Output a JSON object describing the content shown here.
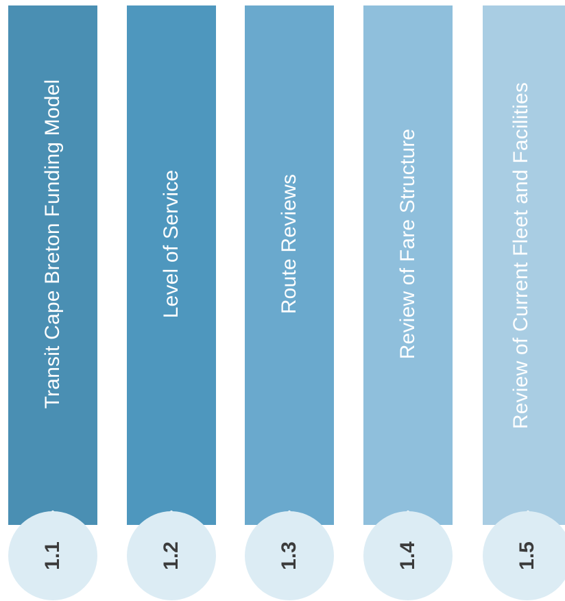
{
  "colors": {
    "background": "#ffffff",
    "badge_fill": "#dcecf4",
    "badge_text": "#3c3c3c",
    "banner_text": "#ffffff"
  },
  "columns": [
    {
      "number": "1.1",
      "title": "Transit Cape Breton Funding Model",
      "color": "#4a8fb3"
    },
    {
      "number": "1.2",
      "title": "Level of Service",
      "color": "#4e97be"
    },
    {
      "number": "1.3",
      "title": "Route Reviews",
      "color": "#6aa9cd"
    },
    {
      "number": "1.4",
      "title": "Review of Fare Structure",
      "color": "#8fbfdc"
    },
    {
      "number": "1.5",
      "title": "Review of Current Fleet and Facilities",
      "color": "#a9cde3"
    }
  ]
}
